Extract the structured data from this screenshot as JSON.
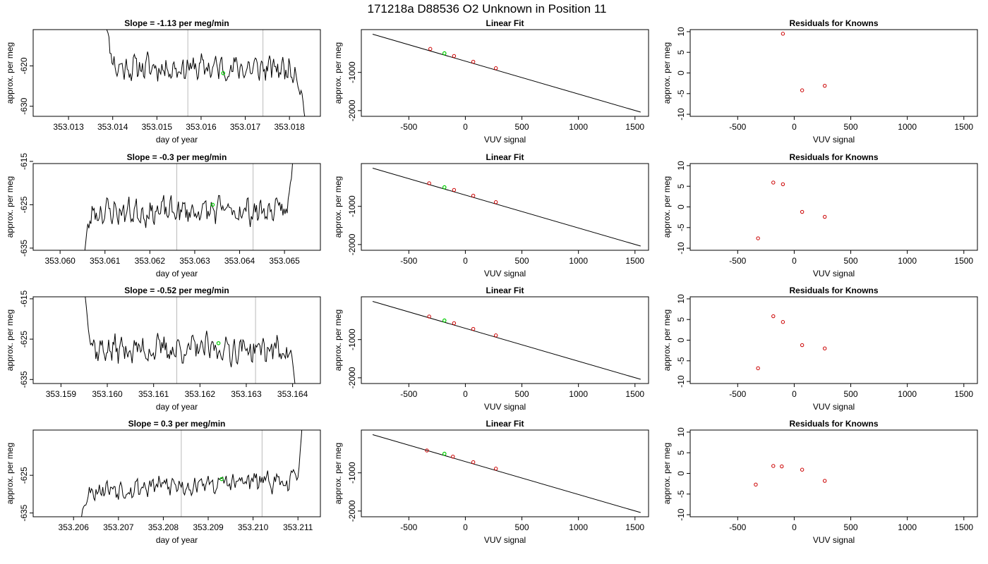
{
  "title": "171218a     D88536   O2 Unknown in Position  11",
  "colors": {
    "known_point": "#cc0000",
    "unknown_point": "#00cc00",
    "line": "#000000",
    "vline": "#bbbbbb"
  },
  "chart_data": [
    {
      "row": 1,
      "time_series": {
        "type": "line",
        "title": "Slope =  -1.13  per meg/min",
        "xlabel": "day of year",
        "ylabel": "approx. per meg",
        "xlim": [
          353.0122,
          353.0187
        ],
        "ylim": [
          -632.5,
          -611
        ],
        "xticks": [
          353.013,
          353.014,
          353.015,
          353.016,
          353.017,
          353.018
        ],
        "xtick_labels": [
          "353.013",
          "353.014",
          "353.015",
          "353.016",
          "353.017",
          "353.018"
        ],
        "yticks": [
          -630,
          -620
        ],
        "ytick_labels": [
          "-630",
          "-620"
        ],
        "x_start": 353.0138,
        "x_end": 353.0184,
        "start_level": -605,
        "end_level": -636,
        "base": -620.5,
        "amp": 2.2,
        "trend": -0.45,
        "seed": 11,
        "ramp_start_frac": 0.06,
        "ramp_end_frac": 0.94,
        "vlines": [
          353.0157,
          353.0174
        ],
        "marker": [
          353.0165,
          -621.8
        ]
      },
      "linear_fit": {
        "type": "scatter",
        "title": "Linear Fit",
        "xlabel": "VUV signal",
        "ylabel": "approx. per meg",
        "xlim": [
          -920,
          1620
        ],
        "ylim": [
          -2150,
          120
        ],
        "xticks": [
          -500,
          0,
          500,
          1000,
          1500
        ],
        "xtick_labels": [
          "-500",
          "0",
          "500",
          "1000",
          "1500"
        ],
        "yticks": [
          -2000,
          -1000
        ],
        "ytick_labels": [
          "-2000",
          "-1000"
        ],
        "line": [
          [
            -820,
            0
          ],
          [
            1550,
            -2040
          ]
        ],
        "knowns": [
          [
            -310,
            -385
          ],
          [
            -100,
            -570
          ],
          [
            70,
            -720
          ],
          [
            270,
            -890
          ]
        ],
        "unknown": [
          [
            -185,
            -500
          ]
        ]
      },
      "residuals": {
        "type": "scatter",
        "title": "Residuals for Knowns",
        "xlabel": "VUV signal",
        "ylabel": "approx. per meg",
        "xlim": [
          -920,
          1620
        ],
        "ylim": [
          -10.5,
          10.5
        ],
        "xticks": [
          -500,
          0,
          500,
          1000,
          1500
        ],
        "xtick_labels": [
          "-500",
          "0",
          "500",
          "1000",
          "1500"
        ],
        "yticks": [
          -10,
          -5,
          0,
          5,
          10
        ],
        "ytick_labels": [
          "-10",
          "-5",
          "0",
          "5",
          "10"
        ],
        "points": [
          [
            -100,
            9.5
          ],
          [
            70,
            -4.2
          ],
          [
            270,
            -3.1
          ]
        ]
      }
    },
    {
      "row": 2,
      "time_series": {
        "type": "line",
        "title": "Slope =  -0.3  per meg/min",
        "xlabel": "day of year",
        "ylabel": "approx. per meg",
        "xlim": [
          353.0594,
          353.0658
        ],
        "ylim": [
          -635.5,
          -615.5
        ],
        "xticks": [
          353.06,
          353.061,
          353.062,
          353.063,
          353.064,
          353.065
        ],
        "xtick_labels": [
          "353.060",
          "353.061",
          "353.062",
          "353.063",
          "353.064",
          "353.065"
        ],
        "yticks": [
          -635,
          -625,
          -615
        ],
        "ytick_labels": [
          "-635",
          "-625",
          "-615"
        ],
        "x_start": 353.0605,
        "x_end": 353.0652,
        "start_level": -640,
        "end_level": -612,
        "base": -626.5,
        "amp": 2.1,
        "trend": 0.2,
        "seed": 23,
        "ramp_start_frac": 0.05,
        "ramp_end_frac": 0.97,
        "vlines": [
          353.0626,
          353.0643
        ],
        "marker": [
          353.0634,
          -625
        ]
      },
      "linear_fit": {
        "type": "scatter",
        "title": "Linear Fit",
        "xlabel": "VUV signal",
        "ylabel": "approx. per meg",
        "xlim": [
          -920,
          1620
        ],
        "ylim": [
          -2150,
          120
        ],
        "xticks": [
          -500,
          0,
          500,
          1000,
          1500
        ],
        "xtick_labels": [
          "-500",
          "0",
          "500",
          "1000",
          "1500"
        ],
        "yticks": [
          -2000,
          -1000
        ],
        "ytick_labels": [
          "-2000",
          "-1000"
        ],
        "line": [
          [
            -820,
            0
          ],
          [
            1550,
            -2040
          ]
        ],
        "knowns": [
          [
            -320,
            -395
          ],
          [
            -100,
            -570
          ],
          [
            70,
            -720
          ],
          [
            270,
            -890
          ]
        ],
        "unknown": [
          [
            -185,
            -500
          ]
        ]
      },
      "residuals": {
        "type": "scatter",
        "title": "Residuals for Knowns",
        "xlabel": "VUV signal",
        "ylabel": "approx. per meg",
        "xlim": [
          -920,
          1620
        ],
        "ylim": [
          -10.5,
          10.5
        ],
        "xticks": [
          -500,
          0,
          500,
          1000,
          1500
        ],
        "xtick_labels": [
          "-500",
          "0",
          "500",
          "1000",
          "1500"
        ],
        "yticks": [
          -10,
          -5,
          0,
          5,
          10
        ],
        "ytick_labels": [
          "-10",
          "-5",
          "0",
          "5",
          "10"
        ],
        "points": [
          [
            -320,
            -7.6
          ],
          [
            -185,
            5.9
          ],
          [
            -100,
            5.5
          ],
          [
            70,
            -1.2
          ],
          [
            270,
            -2.4
          ]
        ]
      }
    },
    {
      "row": 3,
      "time_series": {
        "type": "line",
        "title": "Slope =  -0.52  per meg/min",
        "xlabel": "day of year",
        "ylabel": "approx. per meg",
        "xlim": [
          353.1584,
          353.1646
        ],
        "ylim": [
          -636,
          -614.5
        ],
        "xticks": [
          353.159,
          353.16,
          353.161,
          353.162,
          353.163,
          353.164
        ],
        "xtick_labels": [
          "353.159",
          "353.160",
          "353.161",
          "353.162",
          "353.163",
          "353.164"
        ],
        "yticks": [
          -635,
          -625,
          -615
        ],
        "ytick_labels": [
          "-635",
          "-625",
          "-615"
        ],
        "x_start": 353.1595,
        "x_end": 353.1641,
        "start_level": -612,
        "end_level": -640,
        "base": -627.5,
        "amp": 2.4,
        "trend": 0,
        "seed": 37,
        "ramp_start_frac": 0.05,
        "ramp_end_frac": 0.96,
        "vlines": [
          353.1615,
          353.1632
        ],
        "marker": [
          353.1624,
          -626
        ]
      },
      "linear_fit": {
        "type": "scatter",
        "title": "Linear Fit",
        "xlabel": "VUV signal",
        "ylabel": "approx. per meg",
        "xlim": [
          -920,
          1620
        ],
        "ylim": [
          -2150,
          120
        ],
        "xticks": [
          -500,
          0,
          500,
          1000,
          1500
        ],
        "xtick_labels": [
          "-500",
          "0",
          "500",
          "1000",
          "1500"
        ],
        "yticks": [
          -2000,
          -1000
        ],
        "ytick_labels": [
          "-2000",
          "-1000"
        ],
        "line": [
          [
            -820,
            0
          ],
          [
            1550,
            -2040
          ]
        ],
        "knowns": [
          [
            -320,
            -395
          ],
          [
            -100,
            -570
          ],
          [
            70,
            -720
          ],
          [
            270,
            -890
          ]
        ],
        "unknown": [
          [
            -185,
            -500
          ]
        ]
      },
      "residuals": {
        "type": "scatter",
        "title": "Residuals for Knowns",
        "xlabel": "VUV signal",
        "ylabel": "approx. per meg",
        "xlim": [
          -920,
          1620
        ],
        "ylim": [
          -10.5,
          10.5
        ],
        "xticks": [
          -500,
          0,
          500,
          1000,
          1500
        ],
        "xtick_labels": [
          "-500",
          "0",
          "500",
          "1000",
          "1500"
        ],
        "yticks": [
          -10,
          -5,
          0,
          5,
          10
        ],
        "ytick_labels": [
          "-10",
          "-5",
          "0",
          "5",
          "10"
        ],
        "points": [
          [
            -320,
            -6.8
          ],
          [
            -185,
            5.8
          ],
          [
            -100,
            4.4
          ],
          [
            70,
            -1.2
          ],
          [
            270,
            -2.0
          ]
        ]
      }
    },
    {
      "row": 4,
      "time_series": {
        "type": "line",
        "title": "Slope =  0.3  per meg/min",
        "xlabel": "day of year",
        "ylabel": "approx. per meg",
        "xlim": [
          353.2051,
          353.2115
        ],
        "ylim": [
          -636,
          -613
        ],
        "xticks": [
          353.206,
          353.207,
          353.208,
          353.209,
          353.21,
          353.211
        ],
        "xtick_labels": [
          "353.206",
          "353.207",
          "353.208",
          "353.209",
          "353.210",
          "353.211"
        ],
        "yticks": [
          -635,
          -625
        ],
        "ytick_labels": [
          "-635",
          "-625"
        ],
        "x_start": 353.2061,
        "x_end": 353.2111,
        "start_level": -640,
        "end_level": -610,
        "base": -627.5,
        "amp": 2.0,
        "trend": 2.6,
        "seed": 53,
        "ramp_start_frac": 0.06,
        "ramp_end_frac": 0.975,
        "vlines": [
          353.2084,
          353.2102
        ],
        "marker": [
          353.2093,
          -626
        ]
      },
      "linear_fit": {
        "type": "scatter",
        "title": "Linear Fit",
        "xlabel": "VUV signal",
        "ylabel": "approx. per meg",
        "xlim": [
          -920,
          1620
        ],
        "ylim": [
          -2150,
          120
        ],
        "xticks": [
          -500,
          0,
          500,
          1000,
          1500
        ],
        "xtick_labels": [
          "-500",
          "0",
          "500",
          "1000",
          "1500"
        ],
        "yticks": [
          -2000,
          -1000
        ],
        "ytick_labels": [
          "-2000",
          "-1000"
        ],
        "line": [
          [
            -820,
            0
          ],
          [
            1550,
            -2040
          ]
        ],
        "knowns": [
          [
            -340,
            -415
          ],
          [
            -110,
            -575
          ],
          [
            70,
            -720
          ],
          [
            270,
            -890
          ]
        ],
        "unknown": [
          [
            -185,
            -500
          ]
        ]
      },
      "residuals": {
        "type": "scatter",
        "title": "Residuals for Knowns",
        "xlabel": "VUV signal",
        "ylabel": "approx. per meg",
        "xlim": [
          -920,
          1620
        ],
        "ylim": [
          -10.5,
          10.5
        ],
        "xticks": [
          -500,
          0,
          500,
          1000,
          1500
        ],
        "xtick_labels": [
          "-500",
          "0",
          "500",
          "1000",
          "1500"
        ],
        "yticks": [
          -10,
          -5,
          0,
          5,
          10
        ],
        "ytick_labels": [
          "-10",
          "-5",
          "0",
          "5",
          "10"
        ],
        "points": [
          [
            -340,
            -2.7
          ],
          [
            -185,
            1.8
          ],
          [
            -110,
            1.7
          ],
          [
            70,
            0.9
          ],
          [
            270,
            -1.8
          ]
        ]
      }
    }
  ]
}
